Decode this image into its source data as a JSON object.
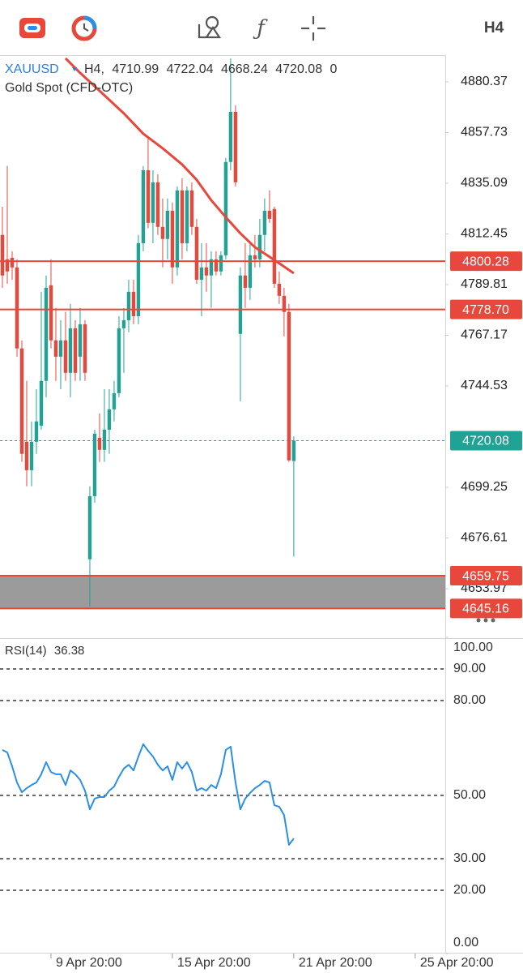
{
  "toolbar": {
    "timeframe": "H4"
  },
  "chart_data": [
    {
      "type": "candlestick",
      "symbol": "XAUUSD",
      "timeframe": "H4,",
      "subtitle": "Gold  Spot (CFD-OTC)",
      "volume": 0,
      "up_color": "#22a294",
      "down_color": "#e8473b",
      "xlim": [
        -0.5,
        107.2
      ],
      "ylim": [
        4632.6,
        4891.6
      ],
      "yticks": [
        4880.37,
        4857.73,
        4835.09,
        4812.45,
        4789.81,
        4767.17,
        4744.53,
        4699.25,
        4676.61,
        4653.97
      ],
      "open": [
        4812.0,
        4801.1,
        4801.8,
        4797.5,
        4761.3,
        4719.6,
        4706.9,
        4719.6,
        4726.8,
        4746.8,
        4789.5,
        4764.9,
        4757.6,
        4764.9,
        4750.4,
        4770.3,
        4757.6,
        4772.1,
        4667.1,
        4695.3,
        4721.4,
        4716.0,
        4725.0,
        4734.1,
        4741.3,
        4770.3,
        4773.9,
        4786.6,
        4775.7,
        4808.3,
        4840.9,
        4817.4,
        4835.5,
        4815.6,
        4810.2,
        4822.8,
        4797.5,
        4831.9,
        4808.3,
        4831.9,
        4815.6,
        4792.0,
        4797.5,
        4793.9,
        4801.1,
        4795.7,
        4802.9,
        4844.6,
        4867.0,
        4767.8,
        4793.9,
        4788.4,
        4802.9,
        4801.1,
        4812.0,
        4822.8,
        4823.6,
        4790.2,
        4784.8,
        4777.6,
        4710.99
      ],
      "high": [
        4824.6,
        4842.8,
        4804.7,
        4801.1,
        4764.9,
        4746.8,
        4728.7,
        4743.1,
        4786.6,
        4793.9,
        4801.1,
        4779.4,
        4773.9,
        4777.6,
        4781.2,
        4773.9,
        4779.4,
        4773.9,
        4699.7,
        4725.0,
        4732.3,
        4743.1,
        4743.1,
        4746.8,
        4775.7,
        4779.4,
        4792.0,
        4792.0,
        4812.0,
        4842.8,
        4855.4,
        4840.9,
        4839.1,
        4828.3,
        4828.3,
        4826.5,
        4833.7,
        4837.3,
        4833.7,
        4835.5,
        4819.2,
        4808.3,
        4808.3,
        4804.7,
        4804.7,
        4804.7,
        4846.4,
        4890.9,
        4869.9,
        4797.5,
        4808.3,
        4808.3,
        4812.0,
        4819.2,
        4828.3,
        4831.9,
        4824.6,
        4795.7,
        4788.4,
        4781.2,
        4722.04
      ],
      "low": [
        4788.4,
        4790.2,
        4792.0,
        4757.6,
        4710.6,
        4699.7,
        4699.7,
        4714.2,
        4725.0,
        4739.5,
        4761.3,
        4746.8,
        4743.1,
        4746.8,
        4739.5,
        4746.8,
        4746.8,
        4746.8,
        4646.1,
        4692.4,
        4710.6,
        4710.6,
        4714.2,
        4728.7,
        4739.5,
        4750.4,
        4768.5,
        4772.1,
        4772.1,
        4804.7,
        4815.0,
        4808.3,
        4812.0,
        4797.5,
        4801.1,
        4790.2,
        4793.9,
        4801.1,
        4804.7,
        4812.0,
        4790.2,
        4775.7,
        4786.6,
        4779.4,
        4793.9,
        4793.9,
        4801.1,
        4840.9,
        4833.7,
        4737.7,
        4779.4,
        4783.0,
        4797.5,
        4797.5,
        4804.7,
        4817.4,
        4788.4,
        4781.2,
        4766.7,
        4710.6,
        4668.24
      ],
      "close": [
        4793.9,
        4795.7,
        4797.5,
        4761.3,
        4714.2,
        4706.9,
        4719.6,
        4728.7,
        4746.8,
        4788.4,
        4764.9,
        4757.6,
        4764.9,
        4750.4,
        4770.3,
        4750.4,
        4772.1,
        4750.4,
        4695.3,
        4723.2,
        4716.0,
        4725.0,
        4734.1,
        4741.3,
        4770.3,
        4773.9,
        4786.6,
        4775.7,
        4808.3,
        4840.9,
        4817.4,
        4835.5,
        4815.6,
        4810.2,
        4822.8,
        4797.5,
        4831.9,
        4808.3,
        4831.9,
        4815.6,
        4792.0,
        4797.5,
        4793.9,
        4801.1,
        4795.7,
        4802.9,
        4844.6,
        4867.0,
        4835.5,
        4793.9,
        4788.4,
        4802.9,
        4801.1,
        4812.0,
        4822.8,
        4819.2,
        4790.2,
        4784.8,
        4777.6,
        4711.3,
        4720.08
      ],
      "ma_line": {
        "color": "#e8473b",
        "x": [
          13,
          16,
          20,
          25,
          29,
          33,
          37,
          40,
          43,
          46,
          49,
          52,
          55,
          57,
          60
        ],
        "values": [
          4890.9,
          4884.4,
          4876.4,
          4866.3,
          4857.2,
          4850.7,
          4843.5,
          4836.6,
          4827.5,
          4819.9,
          4812.7,
          4806.5,
          4802.2,
          4799.3,
          4794.9
        ]
      },
      "levels": [
        {
          "value": 4800.28,
          "color": "#e8473b"
        },
        {
          "value": 4778.7,
          "label": "4778.70",
          "color": "#e8473b"
        }
      ],
      "current_price_color": "#22a294",
      "zone": {
        "from": 4645.16,
        "to": 4659.75,
        "color": "#9b9b9b",
        "edge_color": "#e8473b"
      }
    },
    {
      "type": "line",
      "title": "RSI(14)",
      "color": "#2b8fe6",
      "xlim": [
        -0.5,
        107.2
      ],
      "ylim": [
        0,
        100
      ],
      "yticks": [
        {
          "value": 100,
          "label": "100.00"
        },
        {
          "value": 90,
          "label": "90.00"
        },
        {
          "value": 80,
          "label": "80.00"
        },
        {
          "value": 50,
          "label": "50.00"
        },
        {
          "value": 30,
          "label": "30.00"
        },
        {
          "value": 20,
          "label": "20.00"
        },
        {
          "value": 0,
          "label": "0.00"
        }
      ],
      "xticks": [
        {
          "value": 10,
          "label": "9 Apr 20:00"
        },
        {
          "value": 35,
          "label": "15 Apr 20:00"
        },
        {
          "value": 60,
          "label": "21 Apr 20:00"
        },
        {
          "value": 85,
          "label": "25 Apr 20:00"
        }
      ],
      "x": [
        0,
        1,
        2,
        3,
        4,
        5,
        6,
        7,
        8,
        9,
        10,
        11,
        12,
        13,
        14,
        15,
        16,
        17,
        18,
        19,
        20,
        21,
        22,
        23,
        24,
        25,
        26,
        27,
        28,
        29,
        30,
        31,
        32,
        33,
        34,
        35,
        36,
        37,
        38,
        39,
        40,
        41,
        42,
        43,
        44,
        45,
        46,
        47,
        48,
        49,
        50,
        51,
        52,
        53,
        54,
        55,
        56,
        57,
        58,
        59,
        60
      ],
      "values": [
        64.4,
        63.6,
        59.2,
        54.1,
        51.0,
        52.3,
        53.3,
        54.1,
        56.7,
        60.5,
        57.4,
        56.7,
        56.7,
        53.3,
        57.9,
        56.7,
        54.9,
        51.5,
        45.6,
        49.0,
        49.5,
        49.5,
        51.5,
        52.8,
        55.9,
        58.5,
        59.7,
        57.9,
        62.3,
        66.2,
        64.1,
        62.3,
        59.7,
        57.9,
        59.2,
        54.9,
        60.5,
        58.5,
        60.5,
        57.4,
        51.5,
        52.3,
        51.5,
        53.3,
        52.3,
        56.7,
        64.4,
        65.4,
        54.1,
        45.6,
        49.0,
        50.8,
        52.3,
        53.3,
        54.6,
        54.1,
        46.9,
        46.4,
        43.8,
        34.4,
        36.38
      ]
    }
  ]
}
